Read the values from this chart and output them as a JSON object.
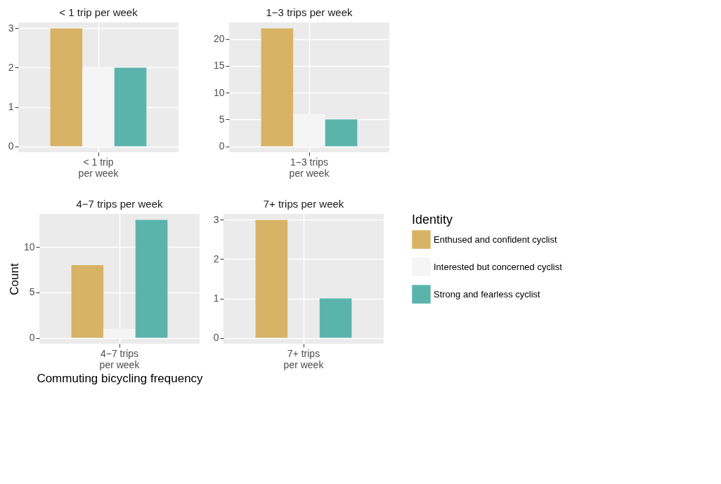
{
  "chart_data": [
    {
      "type": "bar",
      "title": "< 1 trip per week",
      "categories": [
        "< 1 trip per week"
      ],
      "series": [
        {
          "color": "#d8b365",
          "values": [
            3
          ]
        },
        {
          "color": "#f5f5f5",
          "values": [
            2
          ]
        },
        {
          "color": "#5ab4ac",
          "values": [
            2
          ]
        }
      ],
      "ylim": [
        -0.15,
        3.15
      ],
      "yticks": [
        0,
        1,
        2,
        3
      ],
      "grid": true,
      "legend": false
    },
    {
      "type": "bar",
      "title": "1−3 trips per week",
      "categories": [
        "1−3 trips per week"
      ],
      "series": [
        {
          "color": "#d8b365",
          "values": [
            22
          ]
        },
        {
          "color": "#f5f5f5",
          "values": [
            6
          ]
        },
        {
          "color": "#5ab4ac",
          "values": [
            5
          ]
        }
      ],
      "ylim": [
        -1.1,
        23.1
      ],
      "yticks": [
        0,
        5,
        10,
        15,
        20
      ],
      "grid": true,
      "legend": false
    },
    {
      "type": "bar",
      "title": "4−7 trips per week",
      "ylabel": "Count",
      "xlabel": "Commuting bicycling frequency",
      "categories": [
        "4−7 trips per week"
      ],
      "series": [
        {
          "color": "#d8b365",
          "values": [
            8
          ]
        },
        {
          "color": "#f5f5f5",
          "values": [
            1
          ]
        },
        {
          "color": "#5ab4ac",
          "values": [
            13
          ]
        }
      ],
      "ylim": [
        -0.65,
        13.65
      ],
      "yticks": [
        0,
        5,
        10
      ],
      "grid": true,
      "legend": false
    },
    {
      "type": "bar",
      "title": "7+ trips per week",
      "legend_title": "Identity",
      "categories": [
        "7+ trips per week"
      ],
      "series": [
        {
          "name": "Enthused and confident cyclist",
          "color": "#d8b365",
          "values": [
            3
          ]
        },
        {
          "name": "Interested but concerned cyclist",
          "color": "#f5f5f5",
          "values": [
            null
          ]
        },
        {
          "name": "Strong and fearless cyclist",
          "color": "#5ab4ac",
          "values": [
            1
          ]
        }
      ],
      "ylim": [
        -0.15,
        3.15
      ],
      "yticks": [
        0,
        1,
        2,
        3
      ],
      "grid": true,
      "legend": "right"
    }
  ]
}
